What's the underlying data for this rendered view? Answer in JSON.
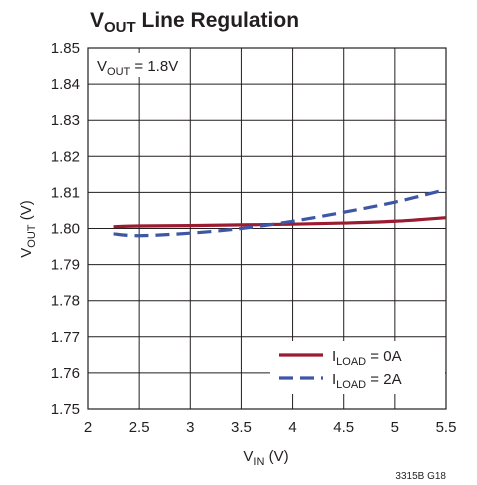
{
  "chart_data": {
    "type": "line",
    "title": {
      "main": "V",
      "sub": "OUT",
      "rest": " Line Regulation"
    },
    "xlabel": {
      "main": "V",
      "sub": "IN",
      "rest": " (V)"
    },
    "ylabel": {
      "main": "V",
      "sub": "OUT",
      "rest": " (V)"
    },
    "xlim": [
      2,
      5.5
    ],
    "ylim": [
      1.75,
      1.85
    ],
    "x_ticks": [
      "2",
      "2.5",
      "3",
      "3.5",
      "4",
      "4.5",
      "5",
      "5.5"
    ],
    "y_ticks": [
      "1.75",
      "1.76",
      "1.77",
      "1.78",
      "1.79",
      "1.80",
      "1.81",
      "1.82",
      "1.83",
      "1.84",
      "1.85"
    ],
    "grid": true,
    "legend_position": "bottom-right",
    "annotation": {
      "main": "V",
      "sub": "OUT",
      "rest": " = 1.8V"
    },
    "figure_id": "3315B G18",
    "series": [
      {
        "label": {
          "main": "I",
          "sub": "LOAD",
          "rest": " = 0A"
        },
        "color": "#9b1b30",
        "dash": "solid",
        "x": [
          2.25,
          2.5,
          3.0,
          3.5,
          4.0,
          4.5,
          5.0,
          5.5
        ],
        "y": [
          1.8005,
          1.8007,
          1.8008,
          1.801,
          1.8012,
          1.8015,
          1.802,
          1.803
        ]
      },
      {
        "label": {
          "main": "I",
          "sub": "LOAD",
          "rest": " = 2A"
        },
        "color": "#3d57a6",
        "dash": "dashed",
        "x": [
          2.25,
          2.5,
          3.0,
          3.5,
          4.0,
          4.5,
          5.0,
          5.5
        ],
        "y": [
          1.7985,
          1.798,
          1.7987,
          1.8,
          1.802,
          1.8045,
          1.8073,
          1.8108
        ]
      }
    ]
  }
}
